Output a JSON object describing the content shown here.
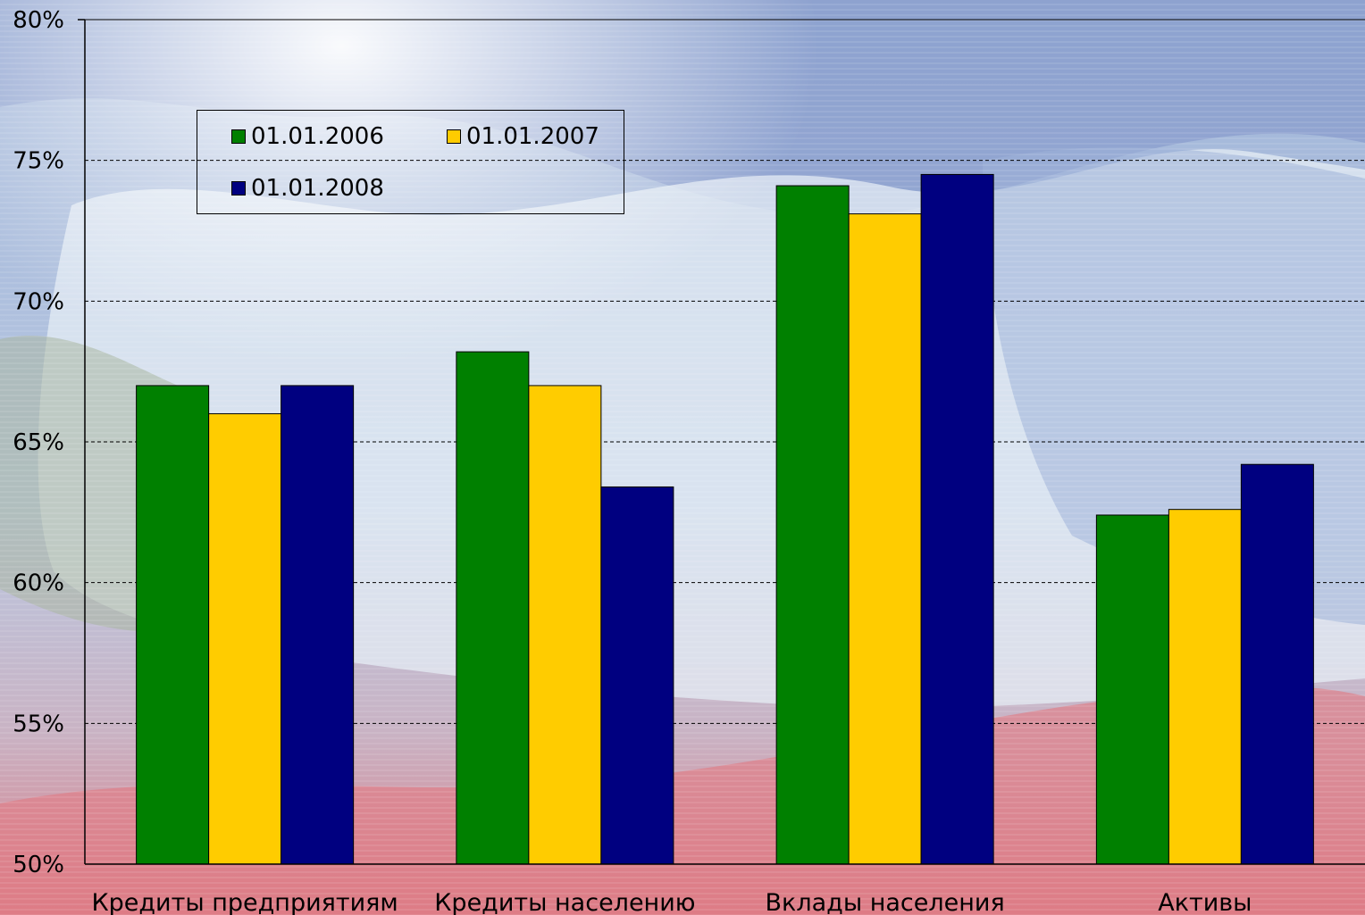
{
  "chart_data": {
    "type": "bar",
    "categories": [
      "Кредиты предприятиям",
      "Кредиты населению",
      "Вклады населения",
      "Активы"
    ],
    "series": [
      {
        "name": "01.01.2006",
        "color": "#008000",
        "values": [
          67.0,
          68.2,
          74.1,
          62.4
        ]
      },
      {
        "name": "01.01.2007",
        "color": "#FFCC00",
        "values": [
          66.0,
          67.0,
          73.1,
          62.6
        ]
      },
      {
        "name": "01.01.2008",
        "color": "#000080",
        "values": [
          67.0,
          63.4,
          74.5,
          64.2
        ]
      }
    ],
    "ylim": [
      50,
      80
    ],
    "yticks": [
      "50%",
      "55%",
      "60%",
      "65%",
      "70%",
      "75%",
      "80%"
    ],
    "grid": true,
    "legend_position": "top-left"
  }
}
